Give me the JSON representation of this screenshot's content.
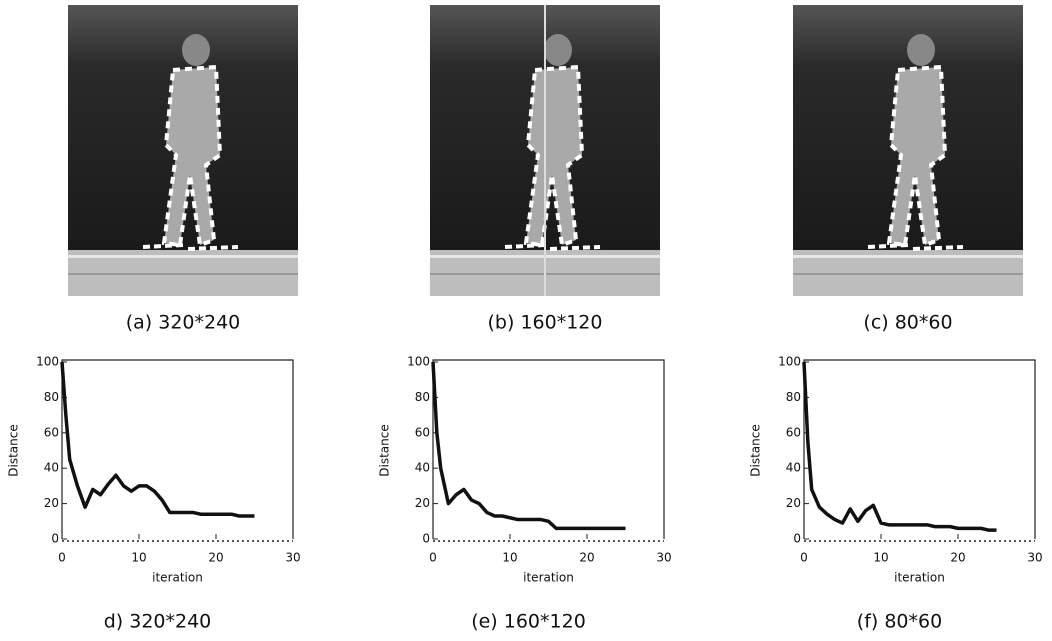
{
  "images": [
    {
      "caption": "(a) 320*240"
    },
    {
      "caption": "(b) 160*120"
    },
    {
      "caption": "(c) 80*60"
    }
  ],
  "chart_data": [
    {
      "type": "line",
      "caption": "d) 320*240",
      "xlabel": "iteration",
      "ylabel": "Distance",
      "color": "#111111",
      "x": [
        0,
        0.5,
        1,
        2,
        3,
        4,
        5,
        6,
        7,
        8,
        9,
        10,
        11,
        12,
        13,
        14,
        15,
        16,
        17,
        18,
        19,
        20,
        21,
        22,
        23,
        24,
        25
      ],
      "values": [
        100,
        70,
        45,
        30,
        18,
        28,
        25,
        31,
        36,
        30,
        27,
        30,
        30,
        27,
        22,
        15,
        15,
        15,
        15,
        14,
        14,
        14,
        14,
        14,
        13,
        13,
        13
      ],
      "xlim": [
        0,
        30
      ],
      "ylim": [
        0,
        100
      ],
      "xticks": [
        0,
        10,
        20,
        30
      ],
      "yticks": [
        0,
        20,
        40,
        60,
        80,
        100
      ]
    },
    {
      "type": "line",
      "caption": "(e) 160*120",
      "xlabel": "iteration",
      "ylabel": "Distance",
      "color": "#111111",
      "x": [
        0,
        0.5,
        1,
        2,
        3,
        4,
        5,
        6,
        7,
        8,
        9,
        10,
        11,
        12,
        13,
        14,
        15,
        16,
        17,
        18,
        19,
        20,
        21,
        22,
        23,
        24,
        25
      ],
      "values": [
        100,
        60,
        40,
        20,
        25,
        28,
        22,
        20,
        15,
        13,
        13,
        12,
        11,
        11,
        11,
        11,
        10,
        6,
        6,
        6,
        6,
        6,
        6,
        6,
        6,
        6,
        6
      ],
      "xlim": [
        0,
        30
      ],
      "ylim": [
        0,
        100
      ],
      "xticks": [
        0,
        10,
        20,
        30
      ],
      "yticks": [
        0,
        20,
        40,
        60,
        80,
        100
      ]
    },
    {
      "type": "line",
      "caption": "(f) 80*60",
      "xlabel": "iteration",
      "ylabel": "Distance",
      "color": "#111111",
      "x": [
        0,
        0.5,
        1,
        2,
        3,
        4,
        5,
        6,
        7,
        8,
        9,
        10,
        11,
        12,
        13,
        14,
        15,
        16,
        17,
        18,
        19,
        20,
        21,
        22,
        23,
        24,
        25
      ],
      "values": [
        100,
        55,
        28,
        18,
        14,
        11,
        9,
        17,
        10,
        16,
        19,
        9,
        8,
        8,
        8,
        8,
        8,
        8,
        7,
        7,
        7,
        6,
        6,
        6,
        6,
        5,
        5
      ],
      "xlim": [
        0,
        30
      ],
      "ylim": [
        0,
        100
      ],
      "xticks": [
        0,
        10,
        20,
        30
      ],
      "yticks": [
        0,
        20,
        40,
        60,
        80,
        100
      ]
    }
  ]
}
